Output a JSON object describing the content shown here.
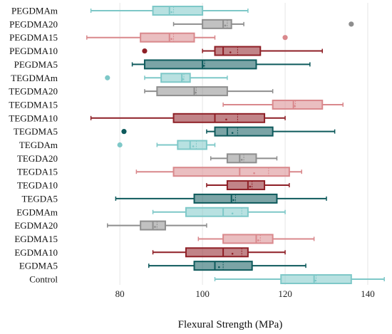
{
  "chart_data": {
    "type": "box",
    "xlabel": "Flexural Strength (MPa)",
    "ylabel": "",
    "xlim": [
      66,
      145
    ],
    "xticks": [
      80,
      100,
      120,
      140
    ],
    "grid": "vertical",
    "colors": {
      "m": "#7EC8C8",
      "20": "#8E8E8E",
      "15": "#D9888C",
      "10": "#8E1F26",
      "5": "#0E5A5C",
      "control": "#7EC8C8"
    },
    "groups": [
      {
        "name": "PEGDMAm",
        "color_key": "m",
        "min": 73,
        "q1": 88,
        "median": 92,
        "mean": 93,
        "q3": 100,
        "max": 111,
        "outliers": []
      },
      {
        "name": "PEGDMA20",
        "color_key": "20",
        "min": 93,
        "q1": 100,
        "median": 105,
        "mean": 106,
        "q3": 107,
        "max": 110,
        "outliers": [
          136
        ]
      },
      {
        "name": "PEGDMA15",
        "color_key": "15",
        "min": 72,
        "q1": 85,
        "median": 92,
        "mean": 93,
        "q3": 98,
        "max": 103,
        "outliers": [
          120
        ]
      },
      {
        "name": "PEGDMA10",
        "color_key": "10",
        "min": 100,
        "q1": 103,
        "median": 105,
        "mean": 108.5,
        "q3": 114,
        "max": 129,
        "outliers": [
          86
        ]
      },
      {
        "name": "PEGDMA5",
        "color_key": "5",
        "min": 83,
        "q1": 86,
        "median": 100,
        "mean": 100.5,
        "q3": 113,
        "max": 126,
        "outliers": []
      },
      {
        "name": "TEGDMAm",
        "color_key": "m",
        "min": 86,
        "q1": 90,
        "median": 95,
        "mean": 95.5,
        "q3": 97,
        "max": 106,
        "outliers": [
          77
        ]
      },
      {
        "name": "TEGDMA20",
        "color_key": "20",
        "min": 86,
        "q1": 89,
        "median": 98,
        "mean": 98.5,
        "q3": 106,
        "max": 117,
        "outliers": []
      },
      {
        "name": "TEGDMA15",
        "color_key": "15",
        "min": 105,
        "q1": 117,
        "median": 122,
        "mean": 122.5,
        "q3": 129,
        "max": 134,
        "outliers": []
      },
      {
        "name": "TEGDMA10",
        "color_key": "10",
        "min": 73,
        "q1": 93,
        "median": 103,
        "mean": 108.5,
        "q3": 115,
        "max": 120,
        "outliers": []
      },
      {
        "name": "TEGDMA5",
        "color_key": "5",
        "min": 101,
        "q1": 103,
        "median": 106,
        "mean": 108.5,
        "q3": 117,
        "max": 132,
        "outliers": [
          81
        ]
      },
      {
        "name": "TEGDAm",
        "color_key": "m",
        "min": 89,
        "q1": 94,
        "median": 97,
        "mean": 98.5,
        "q3": 101,
        "max": 103,
        "outliers": [
          80
        ]
      },
      {
        "name": "TEGDA20",
        "color_key": "20",
        "min": 102,
        "q1": 106,
        "median": 109,
        "mean": 110,
        "q3": 113,
        "max": 118,
        "outliers": []
      },
      {
        "name": "TEGDA15",
        "color_key": "15",
        "min": 84,
        "q1": 93,
        "median": 109,
        "mean": 116,
        "q3": 121,
        "max": 124,
        "outliers": []
      },
      {
        "name": "TEGDA10",
        "color_key": "10",
        "min": 101,
        "q1": 106,
        "median": 111,
        "mean": 112,
        "q3": 115,
        "max": 121,
        "outliers": []
      },
      {
        "name": "TEGDA5",
        "color_key": "5",
        "min": 79,
        "q1": 98,
        "median": 107,
        "mean": 108,
        "q3": 118,
        "max": 130,
        "outliers": []
      },
      {
        "name": "EGDMAm",
        "color_key": "m",
        "min": 88,
        "q1": 96,
        "median": 105,
        "mean": 109.5,
        "q3": 111,
        "max": 120,
        "outliers": []
      },
      {
        "name": "EGDMA20",
        "color_key": "20",
        "min": 77,
        "q1": 85,
        "median": 88,
        "mean": 89,
        "q3": 91,
        "max": 101,
        "outliers": []
      },
      {
        "name": "EGDMA15",
        "color_key": "15",
        "min": 99,
        "q1": 105,
        "median": 113,
        "mean": 114,
        "q3": 117,
        "max": 127,
        "outliers": []
      },
      {
        "name": "EGDMA10",
        "color_key": "10",
        "min": 88,
        "q1": 96,
        "median": 105,
        "mean": 109.5,
        "q3": 111,
        "max": 120,
        "outliers": []
      },
      {
        "name": "EGDMA5",
        "color_key": "5",
        "min": 87,
        "q1": 98,
        "median": 103,
        "mean": 105,
        "q3": 112,
        "max": 125,
        "outliers": []
      },
      {
        "name": "Control",
        "color_key": "control",
        "min": 103,
        "q1": 119,
        "median": 127,
        "mean": 127.5,
        "q3": 136,
        "max": 144,
        "outliers": []
      }
    ]
  }
}
